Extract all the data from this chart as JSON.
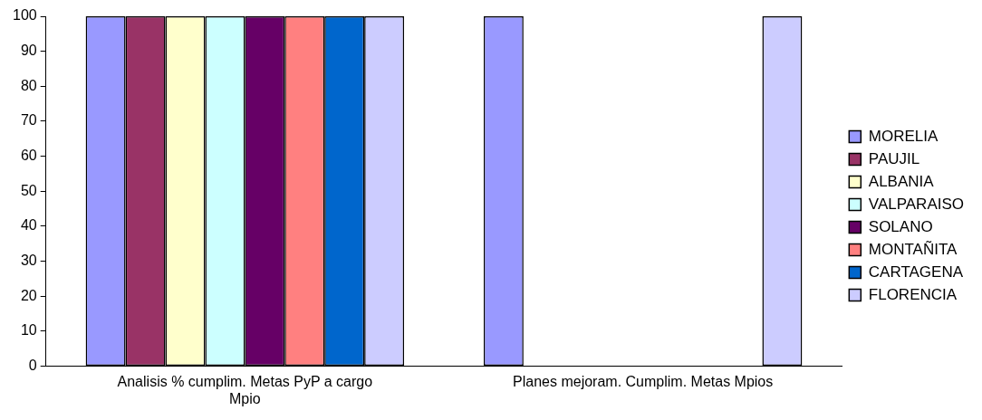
{
  "chart_data": {
    "type": "bar",
    "categories": [
      "Analisis % cumplim. Metas PyP a cargo Mpio",
      "Planes mejoram. Cumplim. Metas Mpios"
    ],
    "series": [
      {
        "name": "MORELIA",
        "color": "#9999ff",
        "values": [
          100,
          100
        ]
      },
      {
        "name": "PAUJIL",
        "color": "#993366",
        "values": [
          100,
          0
        ]
      },
      {
        "name": "ALBANIA",
        "color": "#ffffcc",
        "values": [
          100,
          0
        ]
      },
      {
        "name": "VALPARAISO",
        "color": "#ccffff",
        "values": [
          100,
          0
        ]
      },
      {
        "name": "SOLANO",
        "color": "#660066",
        "values": [
          100,
          0
        ]
      },
      {
        "name": "MONTAÑITA",
        "color": "#ff8080",
        "values": [
          100,
          0
        ]
      },
      {
        "name": "CARTAGENA",
        "color": "#0066cc",
        "values": [
          100,
          0
        ]
      },
      {
        "name": "FLORENCIA",
        "color": "#ccccff",
        "values": [
          100,
          100
        ]
      }
    ],
    "ylim": [
      0,
      100
    ],
    "yticks": [
      0,
      10,
      20,
      30,
      40,
      50,
      60,
      70,
      80,
      90,
      100
    ],
    "grid": false,
    "legend": "right"
  }
}
